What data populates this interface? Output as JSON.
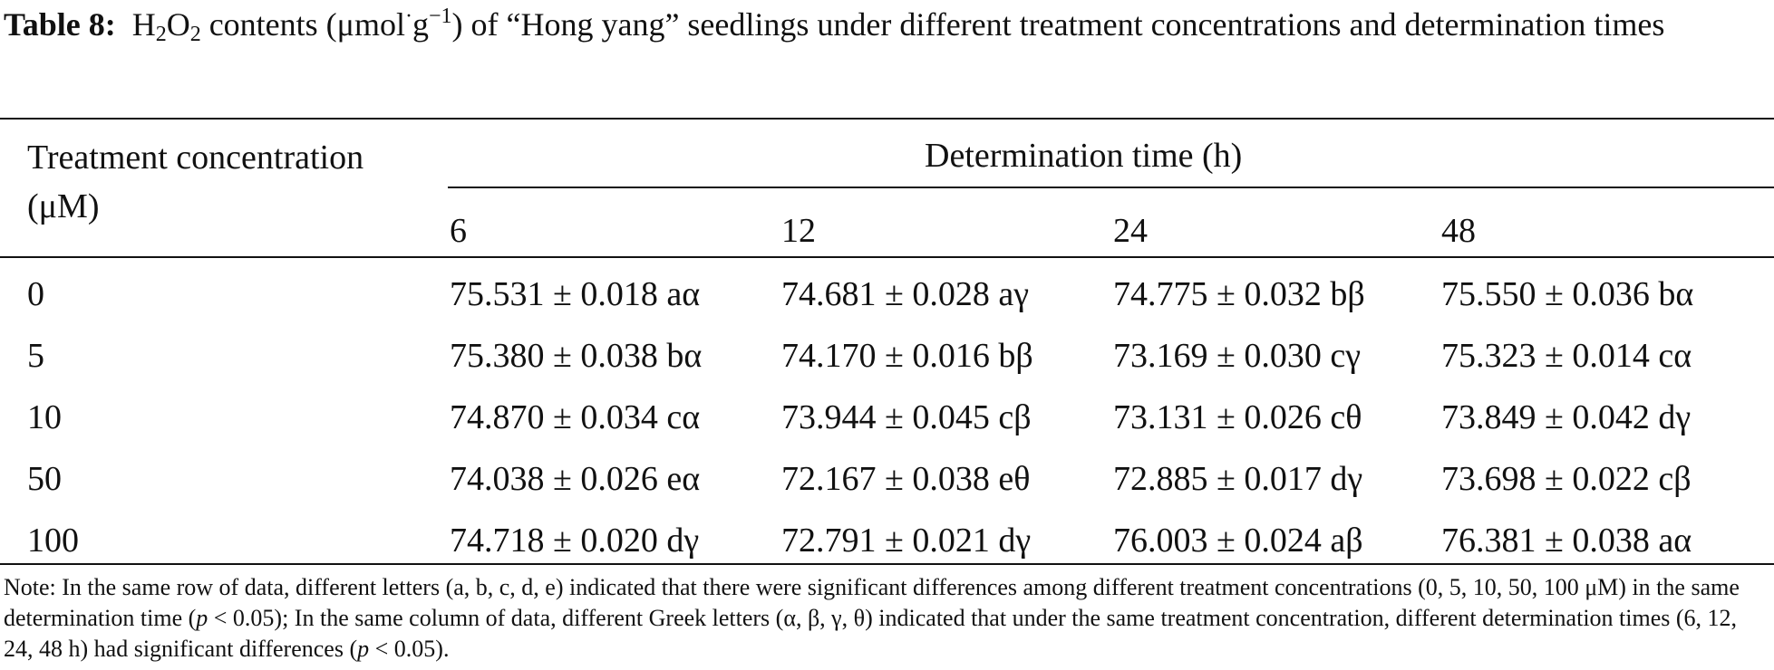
{
  "caption": {
    "label": "Table 8:",
    "h": "H",
    "sub2a": "2",
    "o": "O",
    "sub2b": "2",
    "pre_unit": " contents (μmol",
    "dot": "·",
    "g": "g",
    "exp": "−1",
    "rest": ") of “Hong yang” seedlings under different treatment concentrations and determination times"
  },
  "table": {
    "stub_header": "Treatment concentration (μM)",
    "group_header": "Determination time (h)",
    "time_headers": [
      "6",
      "12",
      "24",
      "48"
    ],
    "rows": [
      {
        "conc": "0",
        "values": [
          "75.531 ± 0.018 aα",
          "74.681 ± 0.028 aγ",
          "74.775 ± 0.032 bβ",
          "75.550 ± 0.036 bα"
        ]
      },
      {
        "conc": "5",
        "values": [
          "75.380 ± 0.038 bα",
          "74.170 ± 0.016 bβ",
          "73.169 ± 0.030 cγ",
          "75.323 ± 0.014 cα"
        ]
      },
      {
        "conc": "10",
        "values": [
          "74.870 ± 0.034 cα",
          "73.944 ± 0.045 cβ",
          "73.131 ± 0.026 cθ",
          "73.849 ± 0.042 dγ"
        ]
      },
      {
        "conc": "50",
        "values": [
          "74.038 ± 0.026 eα",
          "72.167 ± 0.038 eθ",
          "72.885 ± 0.017 dγ",
          "73.698 ± 0.022 cβ"
        ]
      },
      {
        "conc": "100",
        "values": [
          "74.718 ± 0.020 dγ",
          "72.791 ± 0.021 dγ",
          "76.003 ± 0.024 aβ",
          "76.381 ± 0.038 aα"
        ]
      }
    ]
  },
  "note": {
    "part1": "Note: In the same row of data, different letters (a, b, c, d, e) indicated that there were significant differences among different treatment concentrations (0, 5, 10, 50, 100 μM) in the same determination time (",
    "p1": "p",
    "part2": " < 0.05); In the same column of data, different Greek letters (α, β, γ, θ) indicated that under the same treatment concentration, different determination times (6, 12, 24, 48 h) had significant differences (",
    "p2": "p",
    "part3": " < 0.05)."
  }
}
